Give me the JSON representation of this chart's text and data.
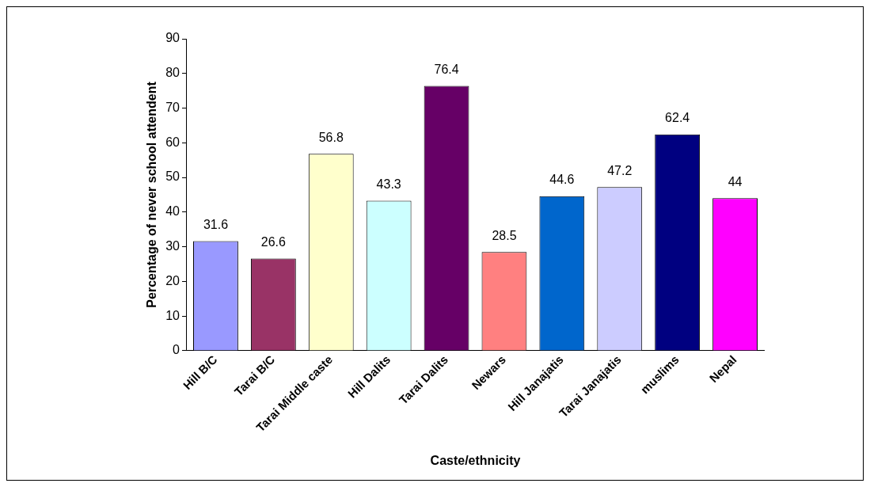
{
  "chart_data": {
    "type": "bar",
    "xlabel": "Caste/ethnicity",
    "ylabel": "Percentage of never school attendent",
    "categories": [
      "Hill B/C",
      "Tarai B/C",
      "Tarai Middle caste",
      "Hill Dalits",
      "Tarai Dalits",
      "Newars",
      "Hill Janajatis",
      "Tarai Janajatis",
      "muslims",
      "Nepal"
    ],
    "values": [
      31.6,
      26.6,
      56.8,
      43.3,
      76.4,
      28.5,
      44.6,
      47.2,
      62.4,
      44
    ],
    "colors": [
      "#9999ff",
      "#993366",
      "#ffffcc",
      "#ccffff",
      "#660066",
      "#ff8080",
      "#0066cc",
      "#ccccff",
      "#000080",
      "#ff00ff"
    ],
    "ylim": [
      0,
      90
    ],
    "yticks": [
      0,
      10,
      20,
      30,
      40,
      50,
      60,
      70,
      80,
      90
    ],
    "grid": false,
    "legend": false,
    "data_labels": true
  }
}
